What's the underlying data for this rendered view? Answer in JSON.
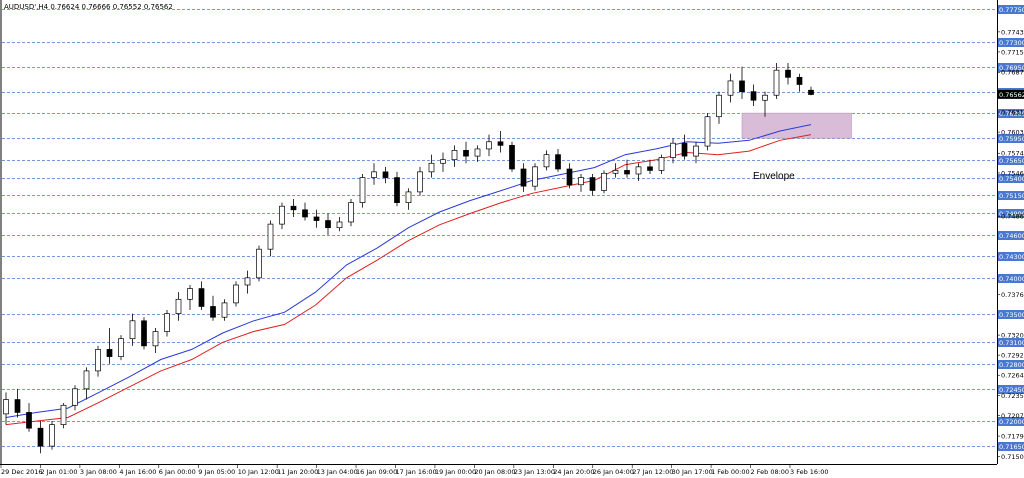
{
  "chart_data": {
    "type": "candlestick",
    "title": "AUDUSD',H4  0.76624 0.76666 0.76552 0.76562",
    "symbol": "AUDUSD'",
    "timeframe": "H4",
    "ohlc_readout": "0.76624 0.76666 0.76552 0.76562",
    "ylim": [
      0.714,
      0.7788
    ],
    "grid": true,
    "x_tick_labels": [
      "29 Dec 2016",
      "2 Jan 01:00",
      "3 Jan 08:00",
      "4 Jan 16:00",
      "6 Jan 00:00",
      "9 Jan 05:00",
      "10 Jan 12:00",
      "11 Jan 20:00",
      "13 Jan 04:00",
      "16 Jan 09:00",
      "17 Jan 16:00",
      "19 Jan 00:00",
      "20 Jan 08:00",
      "23 Jan 13:00",
      "24 Jan 20:00",
      "26 Jan 04:00",
      "27 Jan 12:00",
      "30 Jan 17:00",
      "1 Feb 00:00",
      "2 Feb 08:00",
      "3 Feb 16:00"
    ],
    "y_tick_labels": [
      "0.77435",
      "0.77155",
      "0.76870",
      "0.76315",
      "0.76035",
      "0.75740",
      "0.75465",
      "0.74860",
      "0.73765",
      "0.73200",
      "0.72920",
      "0.72640",
      "0.72355",
      "0.72075",
      "0.71790",
      "0.71505"
    ],
    "levels": [
      {
        "value": "0.77750",
        "color": "#4a78d0"
      },
      {
        "value": "0.77300",
        "color": "#4a78d0"
      },
      {
        "value": "0.76950",
        "color": "#4a78d0"
      },
      {
        "value": "0.76600",
        "color": "#4a78d0"
      },
      {
        "value": "0.76300",
        "color": "#4a78d0"
      },
      {
        "value": "0.75950",
        "color": "#4a78d0"
      },
      {
        "value": "0.75650",
        "color": "#4a78d0"
      },
      {
        "value": "0.75400",
        "color": "#4a78d0"
      },
      {
        "value": "0.75150",
        "color": "#4a78d0"
      },
      {
        "value": "0.74900",
        "color": "#4a78d0"
      },
      {
        "value": "0.74600",
        "color": "#4a78d0"
      },
      {
        "value": "0.74300",
        "color": "#4a78d0"
      },
      {
        "value": "0.74000",
        "color": "#4a78d0"
      },
      {
        "value": "0.73500",
        "color": "#4a78d0"
      },
      {
        "value": "0.73100",
        "color": "#4a78d0"
      },
      {
        "value": "0.72800",
        "color": "#4a78d0"
      },
      {
        "value": "0.72450",
        "color": "#4a78d0"
      },
      {
        "value": "0.72000",
        "color": "#4a78d0"
      },
      {
        "value": "0.71650",
        "color": "#4a78d0"
      }
    ],
    "current_price": {
      "value": "0.76562",
      "color": "#000000"
    },
    "envelope": {
      "label": "Envelope",
      "upper_color": "#2a3ad8",
      "lower_color": "#e02020",
      "upper": [
        0.7205,
        0.7212,
        0.7218,
        0.724,
        0.7262,
        0.7286,
        0.73,
        0.7323,
        0.734,
        0.7352,
        0.738,
        0.7418,
        0.7442,
        0.747,
        0.7492,
        0.7508,
        0.7522,
        0.7536,
        0.7545,
        0.7554,
        0.7572,
        0.758,
        0.759,
        0.7588,
        0.7592,
        0.7605,
        0.7614
      ],
      "lower": [
        0.7195,
        0.72,
        0.7205,
        0.7226,
        0.7248,
        0.727,
        0.7286,
        0.731,
        0.7325,
        0.7335,
        0.7362,
        0.74,
        0.7425,
        0.7452,
        0.7474,
        0.749,
        0.7505,
        0.7518,
        0.7527,
        0.7536,
        0.7558,
        0.7565,
        0.7575,
        0.7572,
        0.7577,
        0.7592,
        0.76
      ]
    },
    "zone": {
      "from": 0.7595,
      "to": 0.763,
      "color": "#d8bcd8"
    },
    "candles": [
      [
        0.721,
        0.724,
        0.7195,
        0.723
      ],
      [
        0.723,
        0.7245,
        0.7205,
        0.7212
      ],
      [
        0.7212,
        0.7225,
        0.7185,
        0.719
      ],
      [
        0.719,
        0.72,
        0.7155,
        0.7165
      ],
      [
        0.7165,
        0.72,
        0.716,
        0.7195
      ],
      [
        0.7195,
        0.7225,
        0.719,
        0.7222
      ],
      [
        0.7222,
        0.725,
        0.7215,
        0.7245
      ],
      [
        0.7245,
        0.7275,
        0.723,
        0.727
      ],
      [
        0.727,
        0.7305,
        0.7262,
        0.73
      ],
      [
        0.73,
        0.733,
        0.728,
        0.729
      ],
      [
        0.729,
        0.732,
        0.7285,
        0.7315
      ],
      [
        0.7315,
        0.735,
        0.7305,
        0.734
      ],
      [
        0.734,
        0.7345,
        0.73,
        0.7305
      ],
      [
        0.7305,
        0.733,
        0.7295,
        0.7325
      ],
      [
        0.7325,
        0.7355,
        0.7318,
        0.735
      ],
      [
        0.735,
        0.738,
        0.734,
        0.737
      ],
      [
        0.737,
        0.739,
        0.7355,
        0.7385
      ],
      [
        0.7385,
        0.7395,
        0.7355,
        0.736
      ],
      [
        0.736,
        0.7375,
        0.734,
        0.7345
      ],
      [
        0.7345,
        0.737,
        0.734,
        0.7365
      ],
      [
        0.7365,
        0.7395,
        0.736,
        0.739
      ],
      [
        0.739,
        0.741,
        0.7378,
        0.74
      ],
      [
        0.74,
        0.7445,
        0.7395,
        0.744
      ],
      [
        0.744,
        0.748,
        0.743,
        0.7475
      ],
      [
        0.7475,
        0.7505,
        0.7468,
        0.75
      ],
      [
        0.75,
        0.751,
        0.7485,
        0.7495
      ],
      [
        0.7495,
        0.7505,
        0.748,
        0.7485
      ],
      [
        0.7485,
        0.7495,
        0.747,
        0.748
      ],
      [
        0.748,
        0.749,
        0.746,
        0.747
      ],
      [
        0.747,
        0.7485,
        0.7465,
        0.7478
      ],
      [
        0.7478,
        0.751,
        0.7472,
        0.7505
      ],
      [
        0.7505,
        0.7545,
        0.7498,
        0.754
      ],
      [
        0.754,
        0.756,
        0.753,
        0.7548
      ],
      [
        0.7548,
        0.7555,
        0.7532,
        0.754
      ],
      [
        0.754,
        0.7548,
        0.75,
        0.7505
      ],
      [
        0.7505,
        0.7525,
        0.7495,
        0.752
      ],
      [
        0.752,
        0.7555,
        0.7515,
        0.7548
      ],
      [
        0.7548,
        0.7572,
        0.754,
        0.756
      ],
      [
        0.756,
        0.7575,
        0.7548,
        0.7565
      ],
      [
        0.7565,
        0.7585,
        0.7555,
        0.7578
      ],
      [
        0.7578,
        0.759,
        0.756,
        0.757
      ],
      [
        0.757,
        0.7585,
        0.7562,
        0.758
      ],
      [
        0.758,
        0.76,
        0.757,
        0.759
      ],
      [
        0.759,
        0.7605,
        0.7575,
        0.7585
      ],
      [
        0.7585,
        0.759,
        0.7548,
        0.7552
      ],
      [
        0.7552,
        0.756,
        0.752,
        0.7528
      ],
      [
        0.7528,
        0.756,
        0.7522,
        0.7555
      ],
      [
        0.7555,
        0.7578,
        0.755,
        0.7572
      ],
      [
        0.7572,
        0.758,
        0.7548,
        0.7552
      ],
      [
        0.7552,
        0.756,
        0.7525,
        0.753
      ],
      [
        0.753,
        0.7545,
        0.752,
        0.754
      ],
      [
        0.754,
        0.7545,
        0.7515,
        0.7522
      ],
      [
        0.7522,
        0.755,
        0.7518,
        0.7546
      ],
      [
        0.7546,
        0.756,
        0.754,
        0.755
      ],
      [
        0.755,
        0.7565,
        0.754,
        0.7545
      ],
      [
        0.7545,
        0.756,
        0.7535,
        0.7555
      ],
      [
        0.7555,
        0.7565,
        0.7545,
        0.755
      ],
      [
        0.755,
        0.7572,
        0.7545,
        0.7568
      ],
      [
        0.7568,
        0.7595,
        0.756,
        0.7588
      ],
      [
        0.7588,
        0.76,
        0.7565,
        0.757
      ],
      [
        0.757,
        0.759,
        0.756,
        0.7584
      ],
      [
        0.7584,
        0.763,
        0.7578,
        0.7625
      ],
      [
        0.7625,
        0.766,
        0.7615,
        0.7655
      ],
      [
        0.7655,
        0.7685,
        0.7645,
        0.7675
      ],
      [
        0.7675,
        0.7695,
        0.765,
        0.766
      ],
      [
        0.766,
        0.767,
        0.764,
        0.7648
      ],
      [
        0.7648,
        0.766,
        0.7625,
        0.7655
      ],
      [
        0.7655,
        0.77,
        0.765,
        0.769
      ],
      [
        0.769,
        0.77,
        0.767,
        0.768
      ],
      [
        0.768,
        0.7685,
        0.766,
        0.767
      ],
      [
        0.7662,
        0.7667,
        0.7655,
        0.7656
      ]
    ]
  }
}
